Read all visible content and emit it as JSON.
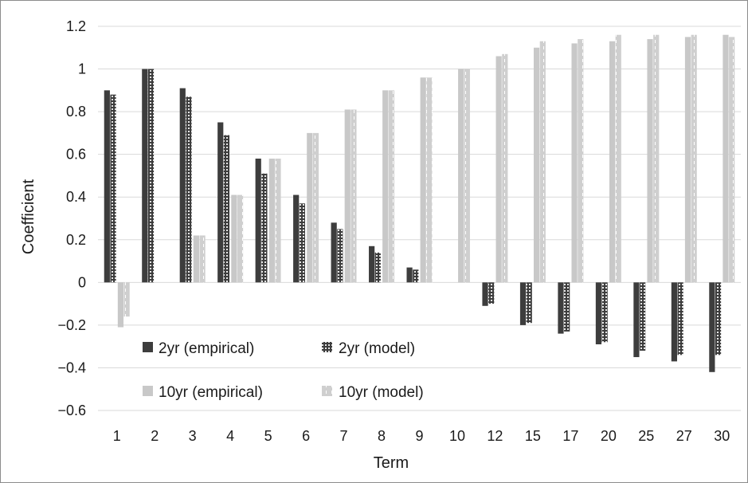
{
  "chart_data": {
    "type": "bar",
    "title": "",
    "xlabel": "Term",
    "ylabel": "Coefficient",
    "ylim": [
      -0.6,
      1.2
    ],
    "yticks": [
      1.2,
      1,
      0.8,
      0.6,
      0.4,
      0.2,
      0,
      -0.2,
      -0.4,
      -0.6
    ],
    "ytick_labels": [
      "1.2",
      "1",
      "0.8",
      "0.6",
      "0.4",
      "0.2",
      "0",
      "−0.2",
      "−0.4",
      "−0.6"
    ],
    "grid": true,
    "legend_position": "bottom-left",
    "categories": [
      "1",
      "2",
      "3",
      "4",
      "5",
      "6",
      "7",
      "8",
      "9",
      "10",
      "12",
      "15",
      "17",
      "20",
      "25",
      "27",
      "30"
    ],
    "series": [
      {
        "name": "2yr (empirical)",
        "color": "#3d3d3d",
        "pattern": "solid",
        "values": [
          0.9,
          1.0,
          0.91,
          0.75,
          0.58,
          0.41,
          0.28,
          0.17,
          0.07,
          0.0,
          -0.11,
          -0.2,
          -0.24,
          -0.29,
          -0.35,
          -0.37,
          -0.42
        ]
      },
      {
        "name": "2yr (model)",
        "color": "#3d3d3d",
        "pattern": "dotted",
        "values": [
          0.88,
          1.0,
          0.87,
          0.69,
          0.51,
          0.37,
          0.25,
          0.14,
          0.06,
          0.0,
          -0.1,
          -0.19,
          -0.23,
          -0.28,
          -0.32,
          -0.34,
          -0.34
        ]
      },
      {
        "name": "10yr (empirical)",
        "color": "#c8c8c8",
        "pattern": "solid",
        "values": [
          -0.21,
          0.0,
          0.22,
          0.41,
          0.58,
          0.7,
          0.81,
          0.9,
          0.96,
          1.0,
          1.06,
          1.1,
          1.12,
          1.13,
          1.14,
          1.15,
          1.16
        ]
      },
      {
        "name": "10yr (model)",
        "color": "#d0d0d0",
        "pattern": "dashed",
        "values": [
          -0.16,
          0.0,
          0.22,
          0.41,
          0.58,
          0.7,
          0.81,
          0.9,
          0.96,
          1.0,
          1.07,
          1.13,
          1.14,
          1.16,
          1.16,
          1.16,
          1.15
        ]
      }
    ]
  }
}
